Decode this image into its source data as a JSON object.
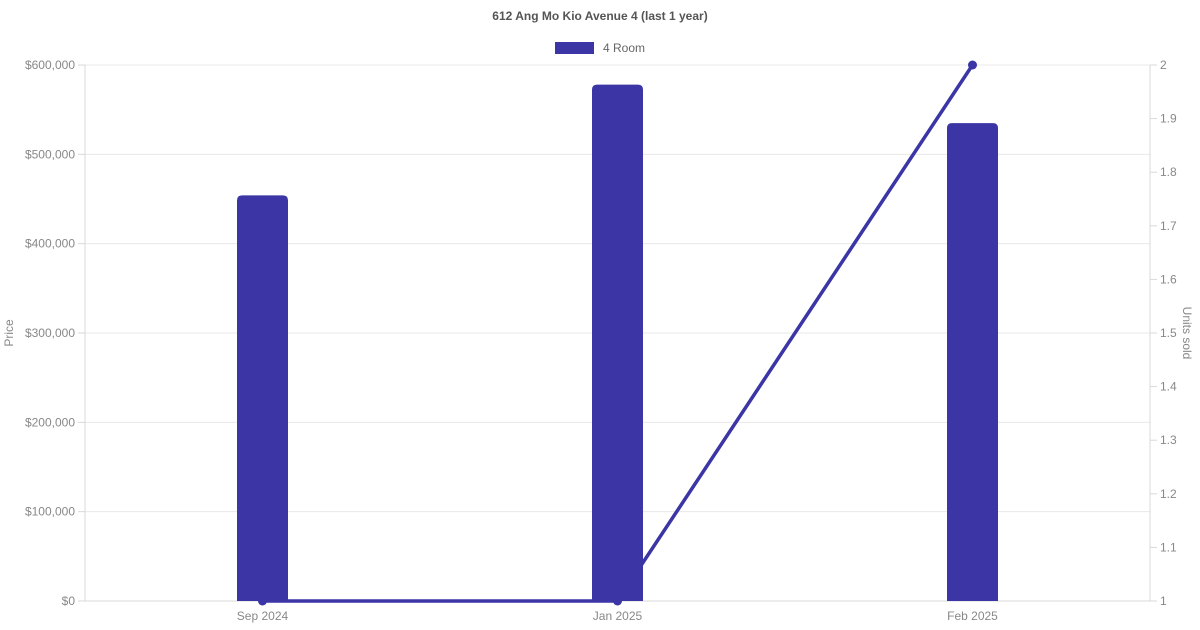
{
  "chart_data": {
    "type": "combo",
    "title": "612 Ang Mo Kio Avenue 4 (last 1 year)",
    "categories": [
      "Sep 2024",
      "Jan 2025",
      "Feb 2025"
    ],
    "series": [
      {
        "name": "4 Room",
        "type": "bar",
        "axis": "left",
        "color": "#3b35a5",
        "values": [
          454000,
          578000,
          535000
        ]
      },
      {
        "name": "4 Room",
        "type": "line",
        "axis": "right",
        "color": "#3b35a5",
        "values": [
          1,
          1,
          2
        ]
      }
    ],
    "left_axis": {
      "label": "Price",
      "min": 0,
      "max": 600000,
      "ticks": [
        {
          "value": 0,
          "label": "$0"
        },
        {
          "value": 100000,
          "label": "$100,000"
        },
        {
          "value": 200000,
          "label": "$200,000"
        },
        {
          "value": 300000,
          "label": "$300,000"
        },
        {
          "value": 400000,
          "label": "$400,000"
        },
        {
          "value": 500000,
          "label": "$500,000"
        },
        {
          "value": 600000,
          "label": "$600,000"
        }
      ]
    },
    "right_axis": {
      "label": "Units sold",
      "min": 1,
      "max": 2,
      "ticks": [
        {
          "value": 1,
          "label": "1"
        },
        {
          "value": 1.1,
          "label": "1.1"
        },
        {
          "value": 1.2,
          "label": "1.2"
        },
        {
          "value": 1.3,
          "label": "1.3"
        },
        {
          "value": 1.4,
          "label": "1.4"
        },
        {
          "value": 1.5,
          "label": "1.5"
        },
        {
          "value": 1.6,
          "label": "1.6"
        },
        {
          "value": 1.7,
          "label": "1.7"
        },
        {
          "value": 1.8,
          "label": "1.8"
        },
        {
          "value": 1.9,
          "label": "1.9"
        },
        {
          "value": 2,
          "label": "2"
        }
      ]
    },
    "legend": {
      "position": "top",
      "items": [
        {
          "label": "4 Room",
          "color": "#3b35a5"
        }
      ]
    },
    "grid": true,
    "colors": {
      "grid": "#e8e8e8",
      "axis_line": "#d9d9d9",
      "tick_text": "#888888",
      "title_text": "#555555",
      "legend_text": "#666666"
    }
  }
}
